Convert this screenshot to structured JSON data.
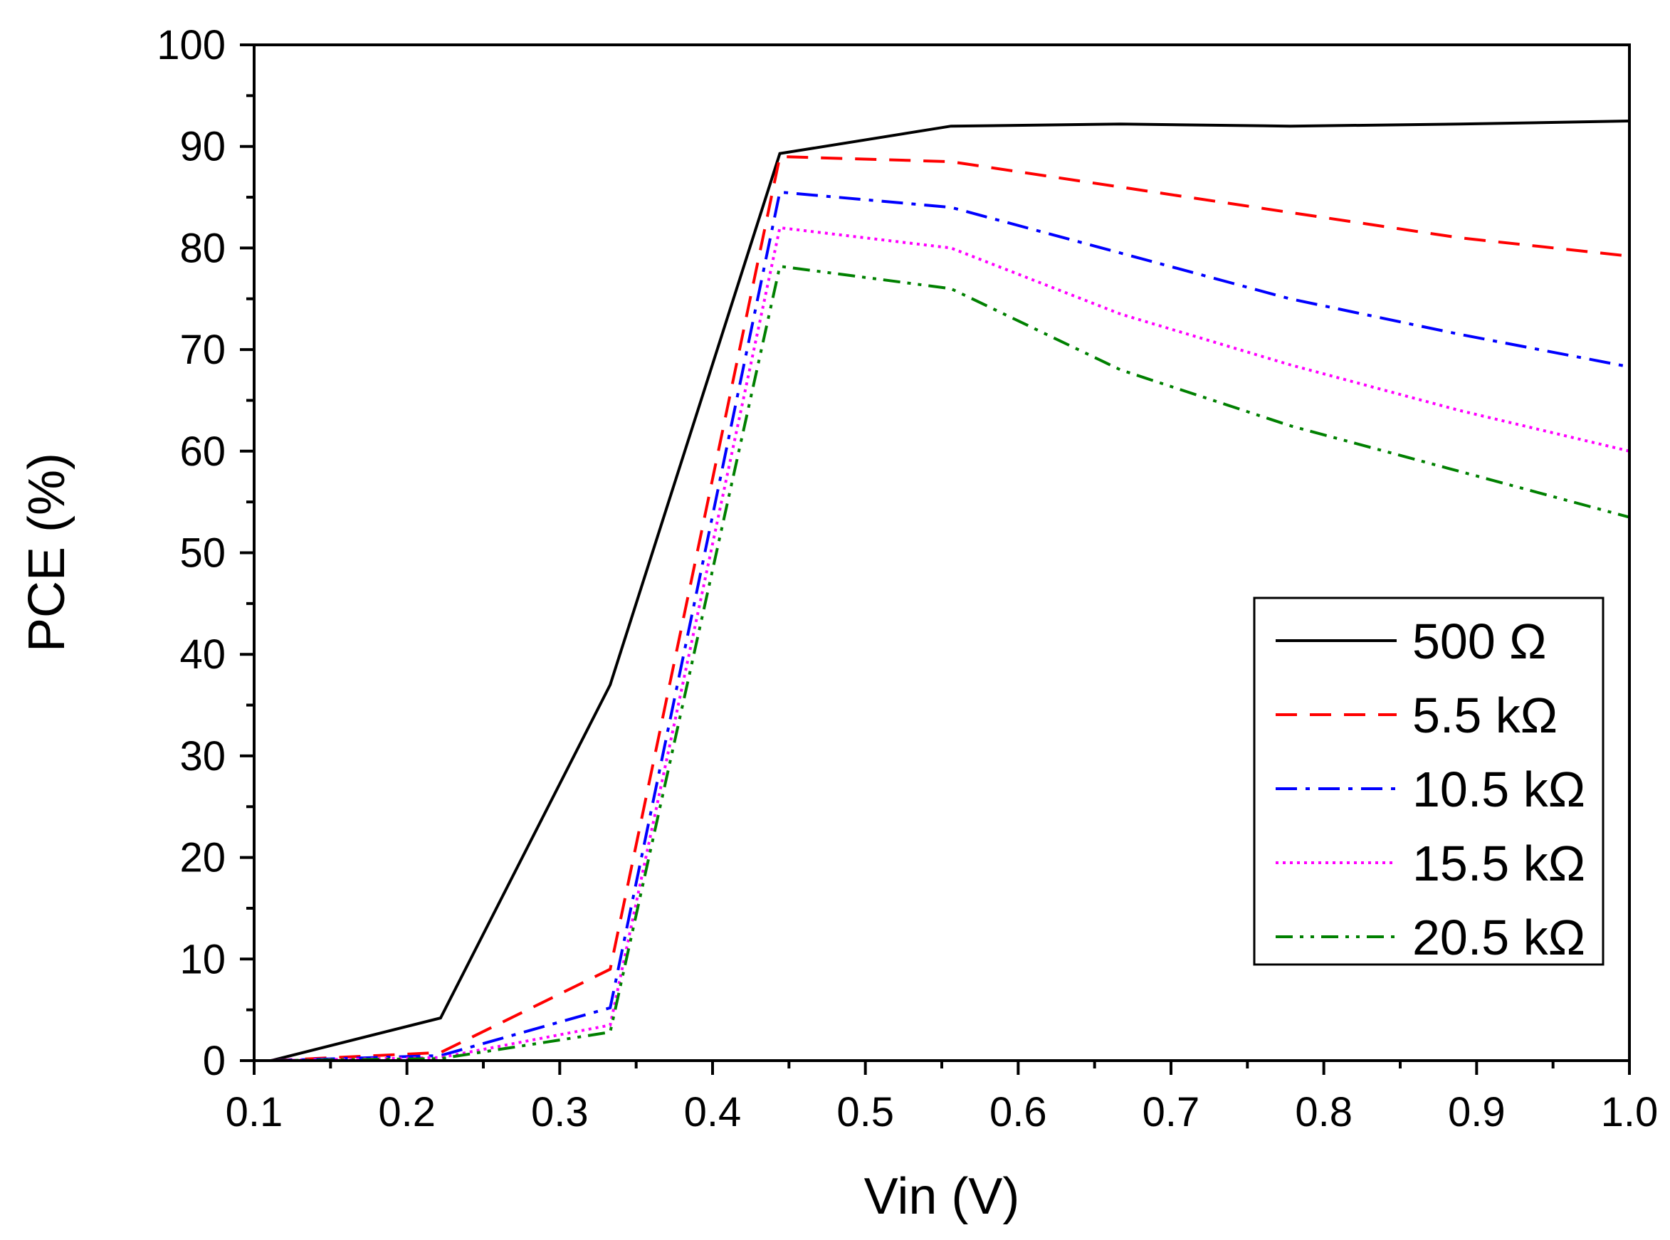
{
  "chart_data": {
    "type": "line",
    "title": "",
    "xlabel": "Vin (V)",
    "ylabel": "PCE (%)",
    "xlim": [
      0.1,
      1.0
    ],
    "ylim": [
      0,
      100
    ],
    "x_ticks": [
      0.1,
      0.2,
      0.3,
      0.4,
      0.5,
      0.6,
      0.7,
      0.8,
      0.9,
      1.0
    ],
    "x_tick_labels": [
      "0.1",
      "0.2",
      "0.3",
      "0.4",
      "0.5",
      "0.6",
      "0.7",
      "0.8",
      "0.9",
      "1.0"
    ],
    "y_ticks": [
      0,
      10,
      20,
      30,
      40,
      50,
      60,
      70,
      80,
      90,
      100
    ],
    "y_tick_labels": [
      "0",
      "10",
      "20",
      "30",
      "40",
      "50",
      "60",
      "70",
      "80",
      "90",
      "100"
    ],
    "grid": false,
    "legend_position": "center-right",
    "x": [
      0.111,
      0.222,
      0.333,
      0.444,
      0.556,
      0.667,
      0.778,
      0.889,
      1.0
    ],
    "series": [
      {
        "name": "500 Ω",
        "color": "#000000",
        "dash": "solid",
        "values": [
          0.0,
          4.2,
          37.0,
          89.3,
          92.0,
          92.2,
          92.0,
          92.2,
          92.5
        ]
      },
      {
        "name": "5.5 kΩ",
        "color": "#ff0000",
        "dash": "dash",
        "values": [
          0.0,
          0.8,
          9.0,
          89.0,
          88.5,
          86.0,
          83.5,
          81.0,
          79.2
        ]
      },
      {
        "name": "10.5 kΩ",
        "color": "#0000ff",
        "dash": "dash-dot",
        "values": [
          0.0,
          0.5,
          5.2,
          85.5,
          84.0,
          79.5,
          75.0,
          71.5,
          68.3
        ]
      },
      {
        "name": "15.5 kΩ",
        "color": "#ff00ff",
        "dash": "dot",
        "values": [
          0.0,
          0.3,
          3.5,
          82.0,
          80.0,
          73.5,
          68.5,
          64.0,
          60.0
        ]
      },
      {
        "name": "20.5 kΩ",
        "color": "#008000",
        "dash": "dash-dot-dot",
        "values": [
          0.0,
          0.2,
          2.8,
          78.2,
          76.0,
          68.0,
          62.5,
          58.0,
          53.5
        ]
      }
    ]
  }
}
